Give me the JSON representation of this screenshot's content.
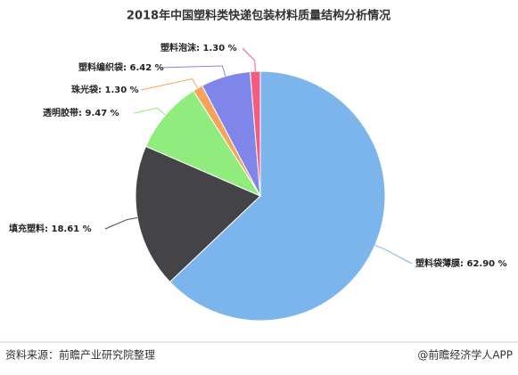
{
  "chart_data": {
    "type": "pie",
    "title": "2018年中国塑料类快递包装材料质量结构分析情况",
    "categories": [
      "塑料袋薄膜",
      "填充塑料",
      "透明胶带",
      "珠光袋",
      "塑料编织袋",
      "塑料泡沫"
    ],
    "values": [
      62.9,
      18.61,
      9.47,
      1.3,
      6.42,
      1.3
    ],
    "value_labels": [
      "62.90 %",
      "18.61 %",
      "9.47 %",
      "1.30 %",
      "6.42 %",
      "1.30 %"
    ],
    "label_separator": ": ",
    "colors": [
      "#7cb5ec",
      "#434348",
      "#90ed7d",
      "#f7a35c",
      "#8085e9",
      "#f15c80"
    ],
    "source": "资料来源：前瞻产业研究院整理",
    "credit": "@前瞻经济学人APP"
  }
}
